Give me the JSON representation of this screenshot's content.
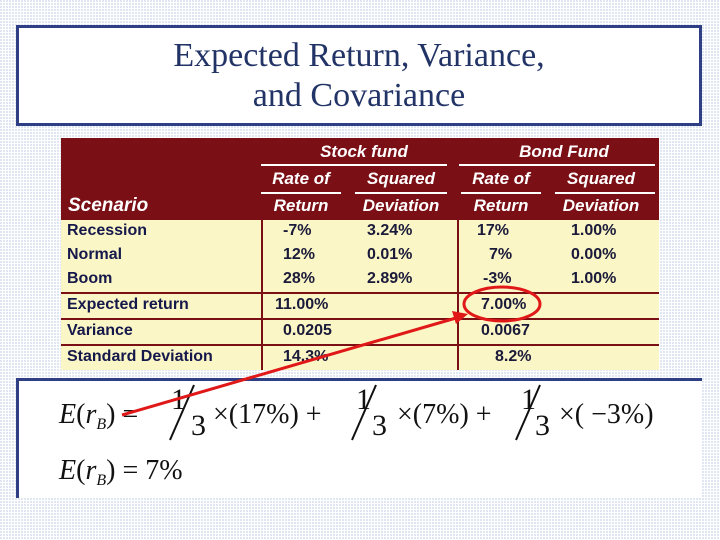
{
  "title": {
    "line1": "Expected Return, Variance,",
    "line2": "and Covariance"
  },
  "table": {
    "stock_fund": "Stock fund",
    "bond_fund": "Bond Fund",
    "rate_of": "Rate of",
    "return": "Return",
    "squared": "Squared",
    "deviation": "Deviation",
    "scenario": "Scenario",
    "rows": [
      {
        "label": "Recession",
        "s_ret": "-7%",
        "s_sq": "3.24%",
        "b_ret": "17%",
        "b_sq": "1.00%"
      },
      {
        "label": "Normal",
        "s_ret": "12%",
        "s_sq": "0.01%",
        "b_ret": "7%",
        "b_sq": "0.00%"
      },
      {
        "label": "Boom",
        "s_ret": "28%",
        "s_sq": "2.89%",
        "b_ret": "-3%",
        "b_sq": "1.00%"
      },
      {
        "label": "Expected return",
        "s_ret": "11.00%",
        "s_sq": "",
        "b_ret": "7.00%",
        "b_sq": ""
      },
      {
        "label": "Variance",
        "s_ret": "0.0205",
        "s_sq": "",
        "b_ret": "0.0067",
        "b_sq": ""
      },
      {
        "label": "Standard Deviation",
        "s_ret": "14.3%",
        "s_sq": "",
        "b_ret": "8.2%",
        "b_sq": ""
      }
    ]
  },
  "formula": {
    "E": "E",
    "r": "r",
    "sub_B": "B",
    "line1_lhs_close": ") =",
    "one": "1",
    "three": "3",
    "term1": "×(17%) +",
    "term2": "×(7%) +",
    "term3": "×( −3%)",
    "line2_result": ") = 7%"
  },
  "colors": {
    "header_bg": "#7a0f16",
    "body_bg": "#fbf6c5",
    "highlight_red": "#e01818",
    "frame_blue": "#2f3f86"
  }
}
